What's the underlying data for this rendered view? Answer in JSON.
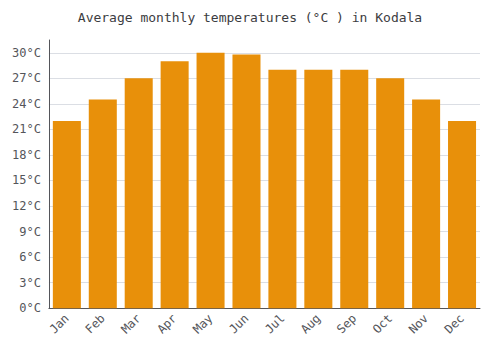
{
  "chart_data": {
    "type": "bar",
    "title": "Average monthly temperatures (°C ) in Kodala",
    "categories": [
      "Jan",
      "Feb",
      "Mar",
      "Apr",
      "May",
      "Jun",
      "Jul",
      "Aug",
      "Sep",
      "Oct",
      "Nov",
      "Dec"
    ],
    "values": [
      22,
      24.5,
      27,
      29,
      30,
      29.8,
      28,
      28,
      28,
      27,
      24.5,
      22
    ],
    "color": "#E8900A",
    "ylim": [
      0,
      31.5
    ],
    "yticks": [
      {
        "value": 0,
        "label": "0°C"
      },
      {
        "value": 3,
        "label": "3°C"
      },
      {
        "value": 6,
        "label": "6°C"
      },
      {
        "value": 9,
        "label": "9°C"
      },
      {
        "value": 12,
        "label": "12°C"
      },
      {
        "value": 15,
        "label": "15°C"
      },
      {
        "value": 18,
        "label": "18°C"
      },
      {
        "value": 21,
        "label": "21°C"
      },
      {
        "value": 24,
        "label": "24°C"
      },
      {
        "value": 27,
        "label": "27°C"
      },
      {
        "value": 30,
        "label": "30°C"
      }
    ],
    "grid": true
  }
}
